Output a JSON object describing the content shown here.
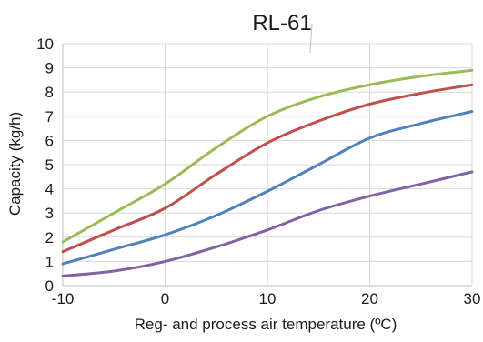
{
  "chart_data": {
    "type": "line",
    "title": "RL-61",
    "xlabel": "Reg- and process air temperature (ºC)",
    "ylabel": "Capacity (kg/h)",
    "xlim": [
      -10,
      30
    ],
    "ylim": [
      0,
      10
    ],
    "x_ticks": [
      "-10",
      "0",
      "10",
      "20",
      "30"
    ],
    "y_ticks": [
      "0",
      "1",
      "2",
      "3",
      "4",
      "5",
      "6",
      "7",
      "8",
      "9",
      "10"
    ],
    "grid": true,
    "colors": [
      "#9bbb59",
      "#c0504d",
      "#4f81bd",
      "#8064a2"
    ],
    "x": [
      -10,
      -5,
      0,
      5,
      10,
      15,
      20,
      25,
      30
    ],
    "series": [
      {
        "values": [
          1.8,
          3.0,
          4.2,
          5.7,
          7.0,
          7.8,
          8.3,
          8.65,
          8.9
        ]
      },
      {
        "values": [
          1.4,
          2.3,
          3.2,
          4.6,
          5.9,
          6.8,
          7.5,
          7.95,
          8.3
        ]
      },
      {
        "values": [
          0.9,
          1.5,
          2.1,
          2.9,
          3.9,
          5.0,
          6.1,
          6.7,
          7.2
        ]
      },
      {
        "values": [
          0.4,
          0.6,
          1.0,
          1.6,
          2.3,
          3.1,
          3.7,
          4.2,
          4.7
        ]
      }
    ]
  }
}
